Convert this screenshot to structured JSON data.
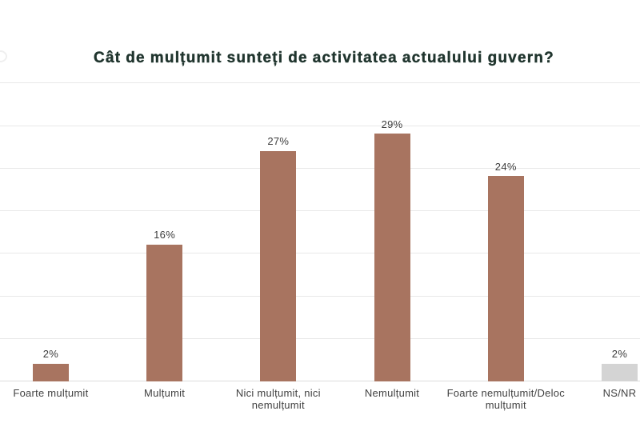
{
  "title": {
    "text": "Cât de mulțumit sunteți de activitatea actualului guvern?",
    "color": "#20352e"
  },
  "chart_data": {
    "type": "bar",
    "title": "Cât de mulțumit sunteți de activitatea actualului guvern?",
    "categories": [
      "Foarte mulțumit",
      "Mulțumit",
      "Nici mulțumit, nici nemulțumit",
      "Nemulțumit",
      "Foarte nemulțumit/Deloc mulțumit",
      "NS/NR"
    ],
    "values": [
      2,
      16,
      27,
      29,
      24,
      2
    ],
    "value_labels": [
      "2%",
      "16%",
      "27%",
      "29%",
      "24%",
      "2%"
    ],
    "category_display": [
      "Foarte mulțumit",
      "Mulțumit",
      "Nici mulțumit, nici\nnemulțumit",
      "Nemulțumit",
      "Foarte nemulțumit/Deloc\nmulțumit",
      "NS/NR"
    ],
    "bar_colors": [
      "#a87460",
      "#a87460",
      "#a87460",
      "#a87460",
      "#a87460",
      "#d4d4d4"
    ],
    "xlabel": "",
    "ylabel": "",
    "ylim": [
      0,
      35
    ],
    "gridline_values": [
      0,
      5,
      10,
      15,
      20,
      25,
      30,
      35
    ],
    "grid": true,
    "legend": false
  },
  "colors": {
    "background": "#ffffff",
    "bar": "#a87460",
    "bar_muted": "#d4d4d4",
    "gridline": "#e8e8e8",
    "baseline": "#dcdcdc",
    "value_label": "#3d3d3d",
    "category_label": "#424242"
  }
}
